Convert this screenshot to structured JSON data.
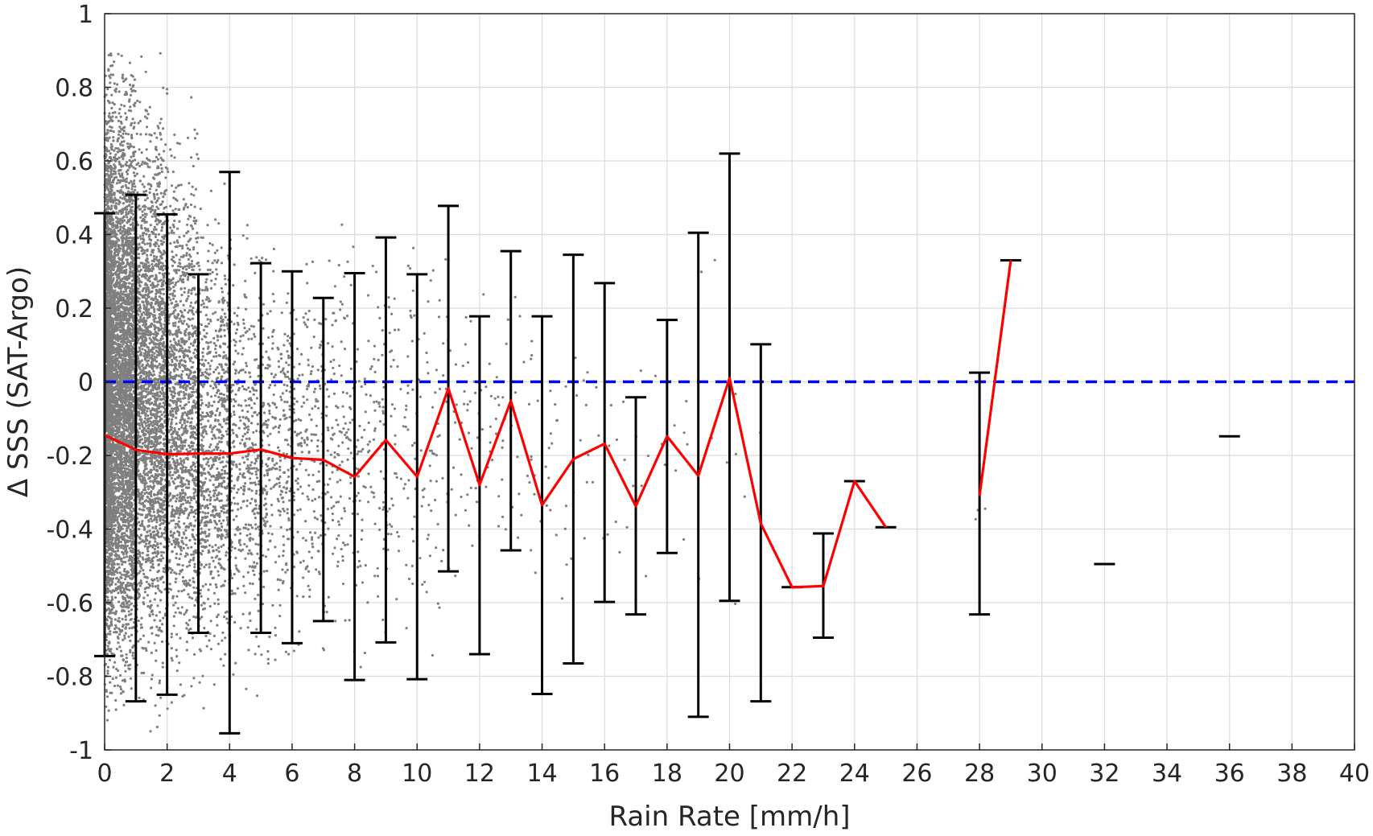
{
  "chart_data": {
    "type": "scatter",
    "xlabel": "Rain Rate [mm/h]",
    "ylabel": "Δ SSS (SAT-Argo)",
    "xlim": [
      0,
      40
    ],
    "ylim": [
      -1,
      1
    ],
    "grid": true,
    "x_ticks": [
      0,
      2,
      4,
      6,
      8,
      10,
      12,
      14,
      16,
      18,
      20,
      22,
      24,
      26,
      28,
      30,
      32,
      34,
      36,
      38,
      40
    ],
    "y_ticks": [
      1,
      0.8,
      0.6,
      0.4,
      0.2,
      0,
      -0.2,
      -0.4,
      -0.6,
      -0.8,
      -1
    ],
    "x_tick_labels": [
      "0",
      "2",
      "4",
      "6",
      "8",
      "10",
      "12",
      "14",
      "16",
      "18",
      "20",
      "22",
      "24",
      "26",
      "28",
      "30",
      "32",
      "34",
      "36",
      "38",
      "40"
    ],
    "y_tick_labels": [
      "1",
      "0.8",
      "0.6",
      "0.4",
      "0.2",
      "0",
      "-0.2",
      "-0.4",
      "-0.6",
      "-0.8",
      "-1"
    ],
    "colors": {
      "scatter": "#7f7f7f",
      "mean_line": "#ff0000",
      "error_bars": "#000000",
      "zero_line": "#0000ff",
      "grid": "#dcdcdc"
    },
    "zero_reference": {
      "y": 0,
      "style": "dashed"
    },
    "mean_line": {
      "segments": [
        [
          {
            "x": 0,
            "y": -0.145
          },
          {
            "x": 1,
            "y": -0.185
          },
          {
            "x": 2,
            "y": -0.197
          },
          {
            "x": 3,
            "y": -0.195
          },
          {
            "x": 4,
            "y": -0.195
          },
          {
            "x": 5,
            "y": -0.184
          },
          {
            "x": 6,
            "y": -0.207
          },
          {
            "x": 7,
            "y": -0.212
          },
          {
            "x": 8,
            "y": -0.258
          },
          {
            "x": 9,
            "y": -0.158
          },
          {
            "x": 10,
            "y": -0.258
          },
          {
            "x": 11,
            "y": -0.018
          },
          {
            "x": 12,
            "y": -0.28
          },
          {
            "x": 13,
            "y": -0.052
          },
          {
            "x": 14,
            "y": -0.335
          },
          {
            "x": 15,
            "y": -0.21
          },
          {
            "x": 16,
            "y": -0.168
          },
          {
            "x": 17,
            "y": -0.338
          },
          {
            "x": 18,
            "y": -0.148
          },
          {
            "x": 19,
            "y": -0.255
          },
          {
            "x": 20,
            "y": 0.01
          },
          {
            "x": 21,
            "y": -0.385
          },
          {
            "x": 22,
            "y": -0.558
          },
          {
            "x": 23,
            "y": -0.555
          },
          {
            "x": 24,
            "y": -0.27
          },
          {
            "x": 25,
            "y": -0.395
          }
        ],
        [
          {
            "x": 28,
            "y": -0.31
          },
          {
            "x": 29,
            "y": 0.33
          }
        ]
      ]
    },
    "error_bars": [
      {
        "x": 0,
        "low": -0.745,
        "high": 0.458
      },
      {
        "x": 1,
        "low": -0.868,
        "high": 0.508
      },
      {
        "x": 2,
        "low": -0.85,
        "high": 0.455
      },
      {
        "x": 3,
        "low": -0.682,
        "high": 0.292
      },
      {
        "x": 4,
        "low": -0.955,
        "high": 0.57
      },
      {
        "x": 5,
        "low": -0.682,
        "high": 0.322
      },
      {
        "x": 6,
        "low": -0.71,
        "high": 0.3
      },
      {
        "x": 7,
        "low": -0.65,
        "high": 0.228
      },
      {
        "x": 8,
        "low": -0.81,
        "high": 0.295
      },
      {
        "x": 9,
        "low": -0.708,
        "high": 0.392
      },
      {
        "x": 10,
        "low": -0.808,
        "high": 0.292
      },
      {
        "x": 11,
        "low": -0.515,
        "high": 0.478
      },
      {
        "x": 12,
        "low": -0.74,
        "high": 0.178
      },
      {
        "x": 13,
        "low": -0.458,
        "high": 0.355
      },
      {
        "x": 14,
        "low": -0.848,
        "high": 0.178
      },
      {
        "x": 15,
        "low": -0.765,
        "high": 0.345
      },
      {
        "x": 16,
        "low": -0.598,
        "high": 0.268
      },
      {
        "x": 17,
        "low": -0.632,
        "high": -0.042
      },
      {
        "x": 18,
        "low": -0.465,
        "high": 0.168
      },
      {
        "x": 19,
        "low": -0.91,
        "high": 0.405
      },
      {
        "x": 20,
        "low": -0.595,
        "high": 0.62
      },
      {
        "x": 21,
        "low": -0.868,
        "high": 0.102
      },
      {
        "x": 22,
        "low": -0.558,
        "high": -0.558
      },
      {
        "x": 23,
        "low": -0.695,
        "high": -0.412
      },
      {
        "x": 24,
        "low": -0.27,
        "high": -0.27
      },
      {
        "x": 25,
        "low": -0.395,
        "high": -0.395
      },
      {
        "x": 28,
        "low": -0.632,
        "high": 0.025
      },
      {
        "x": 29,
        "low": 0.33,
        "high": 0.33
      },
      {
        "x": 32,
        "low": -0.495,
        "high": -0.495
      },
      {
        "x": 36,
        "low": -0.148,
        "high": -0.148
      }
    ],
    "scatter_clusters": [
      {
        "x_range": [
          0,
          0.25
        ],
        "y_range": [
          -1,
          1
        ],
        "count": 2200
      },
      {
        "x_range": [
          0.25,
          1
        ],
        "y_range": [
          -1,
          1
        ],
        "count": 3400
      },
      {
        "x_range": [
          1,
          2
        ],
        "y_range": [
          -1,
          0.95
        ],
        "count": 2200
      },
      {
        "x_range": [
          2,
          3
        ],
        "y_range": [
          -0.98,
          0.8
        ],
        "count": 1300
      },
      {
        "x_range": [
          3,
          4
        ],
        "y_range": [
          -0.95,
          0.6
        ],
        "count": 800
      },
      {
        "x_range": [
          4,
          5
        ],
        "y_range": [
          -0.95,
          0.55
        ],
        "count": 420
      },
      {
        "x_range": [
          5,
          6
        ],
        "y_range": [
          -0.9,
          0.5
        ],
        "count": 300
      },
      {
        "x_range": [
          6,
          7
        ],
        "y_range": [
          -0.9,
          0.5
        ],
        "count": 200
      },
      {
        "x_range": [
          7,
          8
        ],
        "y_range": [
          -0.9,
          0.55
        ],
        "count": 150
      },
      {
        "x_range": [
          8,
          9
        ],
        "y_range": [
          -0.9,
          0.55
        ],
        "count": 110
      },
      {
        "x_range": [
          9,
          10
        ],
        "y_range": [
          -0.9,
          0.5
        ],
        "count": 80
      },
      {
        "x_range": [
          10,
          11
        ],
        "y_range": [
          -0.9,
          0.5
        ],
        "count": 60
      },
      {
        "x_range": [
          11,
          12
        ],
        "y_range": [
          -0.85,
          0.5
        ],
        "count": 40
      },
      {
        "x_range": [
          12,
          13
        ],
        "y_range": [
          -0.85,
          0.45
        ],
        "count": 30
      },
      {
        "x_range": [
          13,
          14
        ],
        "y_range": [
          -0.85,
          0.45
        ],
        "count": 25
      },
      {
        "x_range": [
          14,
          15
        ],
        "y_range": [
          -0.8,
          0.4
        ],
        "count": 18
      },
      {
        "x_range": [
          15,
          16
        ],
        "y_range": [
          -0.8,
          0.4
        ],
        "count": 14
      },
      {
        "x_range": [
          16,
          17
        ],
        "y_range": [
          -0.75,
          0.35
        ],
        "count": 10
      },
      {
        "x_range": [
          17,
          18
        ],
        "y_range": [
          -0.75,
          0.3
        ],
        "count": 8
      },
      {
        "x_range": [
          18,
          19
        ],
        "y_range": [
          -0.7,
          0.4
        ],
        "count": 6
      },
      {
        "x_range": [
          19,
          20
        ],
        "y_range": [
          -0.7,
          0.65
        ],
        "count": 5
      },
      {
        "x_range": [
          20,
          21.5
        ],
        "y_range": [
          -0.7,
          0.3
        ],
        "count": 5
      },
      {
        "x_range": [
          27.5,
          28.2
        ],
        "y_range": [
          -0.6,
          0.1
        ],
        "count": 3
      }
    ]
  }
}
